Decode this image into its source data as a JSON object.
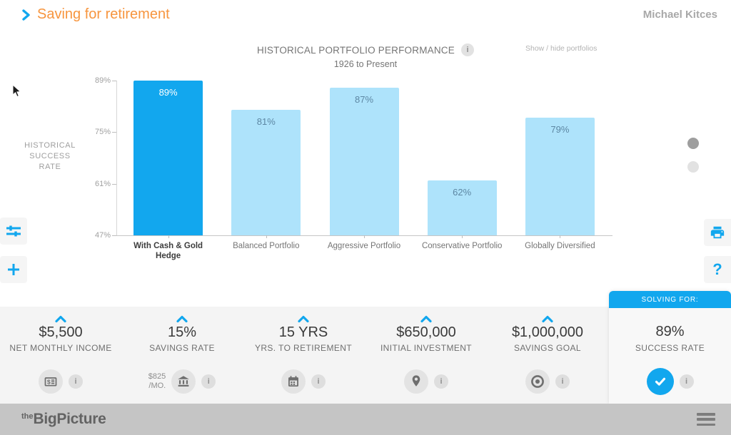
{
  "header": {
    "title": "Saving for retirement",
    "user": "Michael Kitces"
  },
  "chart": {
    "title": "HISTORICAL PORTFOLIO PERFORMANCE",
    "subtitle": "1926 to Present",
    "show_hide_label": "Show / hide portfolios",
    "y_axis_label_lines": [
      "HISTORICAL",
      "SUCCESS",
      "RATE"
    ]
  },
  "chart_data": {
    "type": "bar",
    "categories": [
      "With Cash & Gold Hedge",
      "Balanced Portfolio",
      "Aggressive Portfolio",
      "Conservative Portfolio",
      "Globally Diversified"
    ],
    "values": [
      89,
      81,
      87,
      62,
      79
    ],
    "value_labels": [
      "89%",
      "81%",
      "87%",
      "62%",
      "79%"
    ],
    "title": "HISTORICAL PORTFOLIO PERFORMANCE",
    "subtitle": "1926 to Present",
    "ylabel": "HISTORICAL SUCCESS RATE",
    "ylim": [
      47,
      89
    ],
    "yticks": [
      89,
      75,
      61,
      47
    ],
    "ytick_labels": [
      "89%",
      "75%",
      "61%",
      "47%"
    ],
    "highlight_index": 0,
    "bar_color_highlight": "#12a7ee",
    "bar_color_normal": "#aee3fb",
    "value_color_highlight": "#ffffff",
    "value_color_normal": "#5d87a3",
    "grid": false,
    "legend": false
  },
  "inputs": [
    {
      "value": "$5,500",
      "label": "NET MONTHLY INCOME"
    },
    {
      "value": "15%",
      "label": "SAVINGS RATE",
      "sub_value": "$825",
      "sub_unit": "/MO."
    },
    {
      "value": "15 YRS",
      "label": "YRS. TO RETIREMENT"
    },
    {
      "value": "$650,000",
      "label": "INITIAL INVESTMENT"
    },
    {
      "value": "$1,000,000",
      "label": "SAVINGS GOAL"
    }
  ],
  "solving": {
    "header": "SOLVING FOR:",
    "value": "89%",
    "label": "SUCCESS RATE"
  },
  "footer": {
    "logo_prefix": "the",
    "logo_name": "BigPicture"
  },
  "icons": {
    "info": "i",
    "question": "?"
  },
  "colors": {
    "accent_blue": "#12a7ee",
    "accent_orange": "#f7953e",
    "light_blue": "#aee3fb"
  }
}
